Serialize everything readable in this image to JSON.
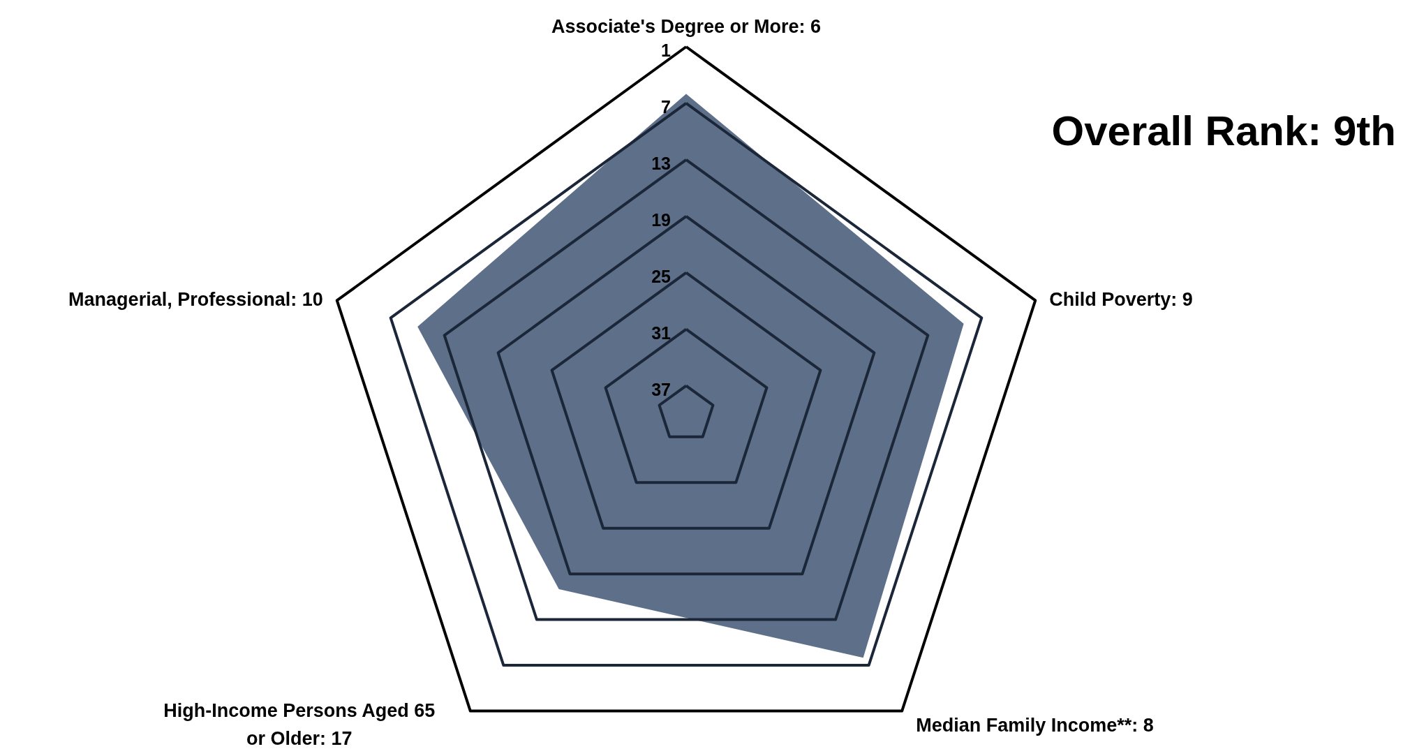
{
  "chart_data": {
    "type": "radar",
    "categories": [
      "Associate's Degree or More: 6",
      "Child Poverty: 9",
      "Median Family Income**: 8",
      "High-Income Persons Aged 65 or Older: 17",
      "Managerial, Professional: 10"
    ],
    "series": [
      {
        "color": "#5e7089",
        "values": [
          6,
          9,
          8,
          17,
          10
        ]
      }
    ],
    "ylim": [
      40,
      1
    ],
    "yticks": [
      1,
      7,
      13,
      19,
      25,
      31,
      37
    ],
    "grid": true,
    "annotations": [
      "Overall Rank: 9th"
    ]
  }
}
